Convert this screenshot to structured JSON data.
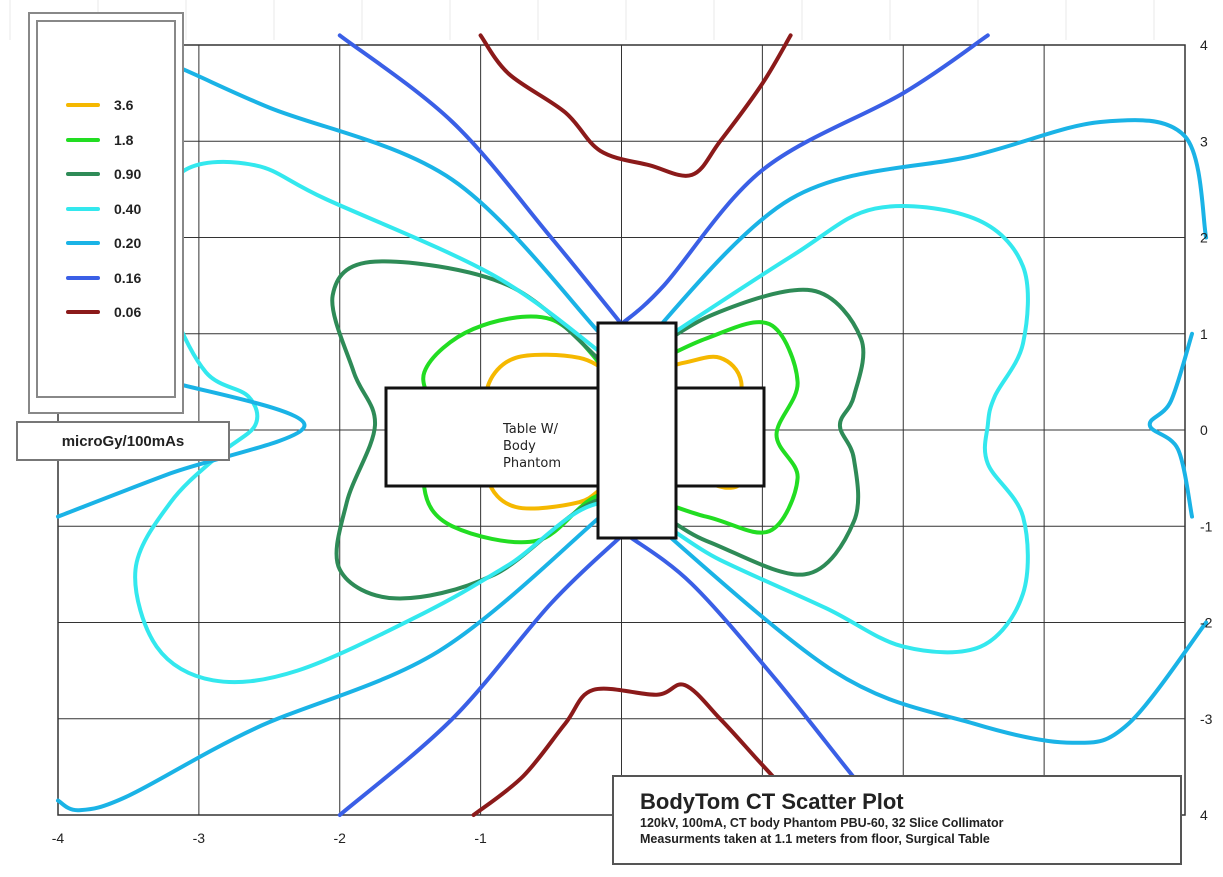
{
  "chart_data": {
    "type": "line",
    "title": "BodyTom CT Scatter Plot",
    "subtitle_lines": [
      "120kV, 100mA, CT body Phantom PBU-60, 32 Slice Collimator",
      "Measurments taken at 1.1 meters from floor, Surgical Table"
    ],
    "unit_label": "microGy/100mAs",
    "xlim": [
      -4,
      4
    ],
    "ylim": [
      -4,
      4
    ],
    "x_ticks": [
      "-4",
      "-3",
      "-2",
      "-1"
    ],
    "y_ticks": [
      "4",
      "3",
      "2",
      "1",
      "0",
      "-1",
      "-2",
      "-3",
      "4"
    ],
    "grid": true,
    "legend_position": "top-left",
    "annotation": "Table W/ Body Phantom",
    "series": [
      {
        "name": "3.6",
        "color": "#f5b800",
        "points": [
          [
            -0.05,
            0.55
          ],
          [
            -0.3,
            0.75
          ],
          [
            -0.75,
            0.75
          ],
          [
            -0.95,
            0.45
          ],
          [
            -0.9,
            0.05
          ],
          [
            -0.95,
            -0.5
          ],
          [
            -0.75,
            -0.8
          ],
          [
            -0.3,
            -0.75
          ],
          [
            -0.05,
            -0.55
          ],
          [
            0.45,
            -0.5
          ],
          [
            0.75,
            -0.6
          ],
          [
            0.85,
            -0.5
          ],
          [
            0.8,
            -0.05
          ],
          [
            0.85,
            0.5
          ],
          [
            0.7,
            0.75
          ],
          [
            0.45,
            0.7
          ],
          [
            0.05,
            0.55
          ]
        ]
      },
      {
        "name": "1.8",
        "color": "#22dd22",
        "points": [
          [
            -0.1,
            0.6
          ],
          [
            -0.5,
            1.15
          ],
          [
            -1.05,
            1.05
          ],
          [
            -1.4,
            0.6
          ],
          [
            -1.3,
            0.05
          ],
          [
            -1.4,
            -0.6
          ],
          [
            -1.2,
            -1.0
          ],
          [
            -0.6,
            -1.15
          ],
          [
            -0.1,
            -0.65
          ],
          [
            0.6,
            -0.9
          ],
          [
            1.05,
            -1.05
          ],
          [
            1.25,
            -0.5
          ],
          [
            1.1,
            -0.05
          ],
          [
            1.25,
            0.5
          ],
          [
            1.05,
            1.1
          ],
          [
            0.6,
            0.95
          ],
          [
            0.1,
            0.6
          ]
        ]
      },
      {
        "name": "0.90",
        "color": "#2e8b57",
        "points": [
          [
            -0.1,
            0.65
          ],
          [
            -0.8,
            1.5
          ],
          [
            -1.75,
            1.75
          ],
          [
            -2.05,
            1.4
          ],
          [
            -1.9,
            0.6
          ],
          [
            -1.75,
            0.05
          ],
          [
            -1.95,
            -0.75
          ],
          [
            -2.0,
            -1.45
          ],
          [
            -1.6,
            -1.75
          ],
          [
            -0.9,
            -1.5
          ],
          [
            -0.1,
            -0.7
          ],
          [
            0.6,
            -1.15
          ],
          [
            1.3,
            -1.5
          ],
          [
            1.65,
            -0.95
          ],
          [
            1.65,
            -0.3
          ],
          [
            1.55,
            0.05
          ],
          [
            1.65,
            0.35
          ],
          [
            1.7,
            0.95
          ],
          [
            1.35,
            1.45
          ],
          [
            0.65,
            1.2
          ],
          [
            0.1,
            0.7
          ]
        ]
      },
      {
        "name": "0.40",
        "color": "#33e8ee",
        "points": [
          [
            -0.1,
            0.75
          ],
          [
            -0.9,
            1.6
          ],
          [
            -2.1,
            2.4
          ],
          [
            -2.6,
            2.75
          ],
          [
            -3.1,
            2.7
          ],
          [
            -3.35,
            2.1
          ],
          [
            -3.2,
            1.3
          ],
          [
            -2.95,
            0.6
          ],
          [
            -2.65,
            0.35
          ],
          [
            -2.6,
            0.05
          ],
          [
            -2.85,
            -0.25
          ],
          [
            -3.2,
            -0.75
          ],
          [
            -3.45,
            -1.45
          ],
          [
            -3.3,
            -2.25
          ],
          [
            -2.9,
            -2.6
          ],
          [
            -2.3,
            -2.5
          ],
          [
            -1.4,
            -1.9
          ],
          [
            -0.8,
            -1.4
          ],
          [
            -0.1,
            -0.75
          ],
          [
            0.7,
            -1.35
          ],
          [
            1.45,
            -1.85
          ],
          [
            2.0,
            -2.25
          ],
          [
            2.55,
            -2.25
          ],
          [
            2.85,
            -1.7
          ],
          [
            2.85,
            -0.9
          ],
          [
            2.6,
            -0.35
          ],
          [
            2.6,
            0.05
          ],
          [
            2.65,
            0.35
          ],
          [
            2.85,
            0.9
          ],
          [
            2.85,
            1.7
          ],
          [
            2.5,
            2.2
          ],
          [
            1.8,
            2.3
          ],
          [
            1.2,
            1.8
          ],
          [
            0.1,
            0.75
          ]
        ]
      },
      {
        "name": "0.20",
        "color": "#1ab3e6",
        "points": [
          [
            -0.15,
            1.0
          ],
          [
            -1.2,
            2.6
          ],
          [
            -2.5,
            3.35
          ],
          [
            -3.3,
            3.85
          ],
          [
            -3.6,
            3.8
          ],
          [
            -4.0,
            3.65
          ]
        ]
      },
      {
        "name": "0.20",
        "color": "#1ab3e6",
        "points": [
          [
            -0.15,
            -0.9
          ],
          [
            -1.3,
            -2.3
          ],
          [
            -2.6,
            -3.1
          ],
          [
            -3.5,
            -3.8
          ],
          [
            -3.85,
            -3.95
          ],
          [
            -4.0,
            -3.85
          ]
        ]
      },
      {
        "name": "0.20",
        "color": "#1ab3e6",
        "points": [
          [
            0.1,
            0.8
          ],
          [
            1.2,
            2.4
          ],
          [
            2.5,
            2.85
          ],
          [
            3.4,
            3.2
          ],
          [
            4.0,
            3.05
          ],
          [
            4.15,
            2.0
          ]
        ]
      },
      {
        "name": "0.20",
        "color": "#1ab3e6",
        "points": [
          [
            0.1,
            -0.8
          ],
          [
            1.5,
            -2.5
          ],
          [
            2.5,
            -3.05
          ],
          [
            3.2,
            -3.25
          ],
          [
            3.6,
            -3.05
          ],
          [
            4.15,
            -2.0
          ]
        ]
      },
      {
        "name": "0.20",
        "color": "#1ab3e6",
        "points": [
          [
            4.05,
            1.0
          ],
          [
            3.9,
            0.3
          ],
          [
            3.75,
            0.05
          ],
          [
            3.95,
            -0.2
          ],
          [
            4.05,
            -0.9
          ]
        ]
      },
      {
        "name": "0.20",
        "color": "#1ab3e6",
        "points": [
          [
            -4.0,
            -0.9
          ],
          [
            -3.2,
            -0.45
          ],
          [
            -2.25,
            0.05
          ],
          [
            -3.2,
            0.5
          ],
          [
            -3.8,
            0.7
          ]
        ]
      },
      {
        "name": "0.16",
        "color": "#3a5fe6",
        "points": [
          [
            -2.0,
            4.1
          ],
          [
            -1.2,
            3.2
          ],
          [
            -0.5,
            2.0
          ],
          [
            0.0,
            1.1
          ]
        ]
      },
      {
        "name": "0.16",
        "color": "#3a5fe6",
        "points": [
          [
            0.0,
            1.1
          ],
          [
            0.3,
            1.5
          ],
          [
            1.0,
            2.7
          ],
          [
            2.0,
            3.5
          ],
          [
            2.6,
            4.1
          ]
        ]
      },
      {
        "name": "0.16",
        "color": "#3a5fe6",
        "points": [
          [
            -2.0,
            -4.0
          ],
          [
            -1.2,
            -3.0
          ],
          [
            -0.5,
            -1.8
          ],
          [
            0.0,
            -1.1
          ]
        ]
      },
      {
        "name": "0.16",
        "color": "#3a5fe6",
        "points": [
          [
            0.05,
            -1.1
          ],
          [
            0.5,
            -1.6
          ],
          [
            1.1,
            -2.6
          ],
          [
            1.7,
            -3.7
          ],
          [
            1.9,
            -4.0
          ]
        ]
      },
      {
        "name": "0.06",
        "color": "#8b1a1a",
        "points": [
          [
            -1.0,
            4.1
          ],
          [
            -0.8,
            3.7
          ],
          [
            -0.4,
            3.3
          ],
          [
            -0.15,
            2.9
          ],
          [
            0.2,
            2.75
          ],
          [
            0.5,
            2.65
          ],
          [
            0.7,
            3.0
          ],
          [
            1.0,
            3.6
          ],
          [
            1.2,
            4.1
          ]
        ]
      },
      {
        "name": "0.06",
        "color": "#8b1a1a",
        "points": [
          [
            -1.05,
            -4.0
          ],
          [
            -0.7,
            -3.6
          ],
          [
            -0.4,
            -3.05
          ],
          [
            -0.2,
            -2.7
          ],
          [
            0.25,
            -2.75
          ],
          [
            0.45,
            -2.65
          ],
          [
            0.7,
            -3.0
          ],
          [
            0.95,
            -3.4
          ],
          [
            1.2,
            -3.8
          ]
        ]
      }
    ]
  },
  "legend": {
    "items": [
      {
        "label": "3.6",
        "color": "#f5b800"
      },
      {
        "label": "1.8",
        "color": "#22dd22"
      },
      {
        "label": "0.90",
        "color": "#2e8b57"
      },
      {
        "label": "0.40",
        "color": "#33e8ee"
      },
      {
        "label": "0.20",
        "color": "#1ab3e6"
      },
      {
        "label": "0.16",
        "color": "#3a5fe6"
      },
      {
        "label": "0.06",
        "color": "#8b1a1a"
      }
    ]
  }
}
